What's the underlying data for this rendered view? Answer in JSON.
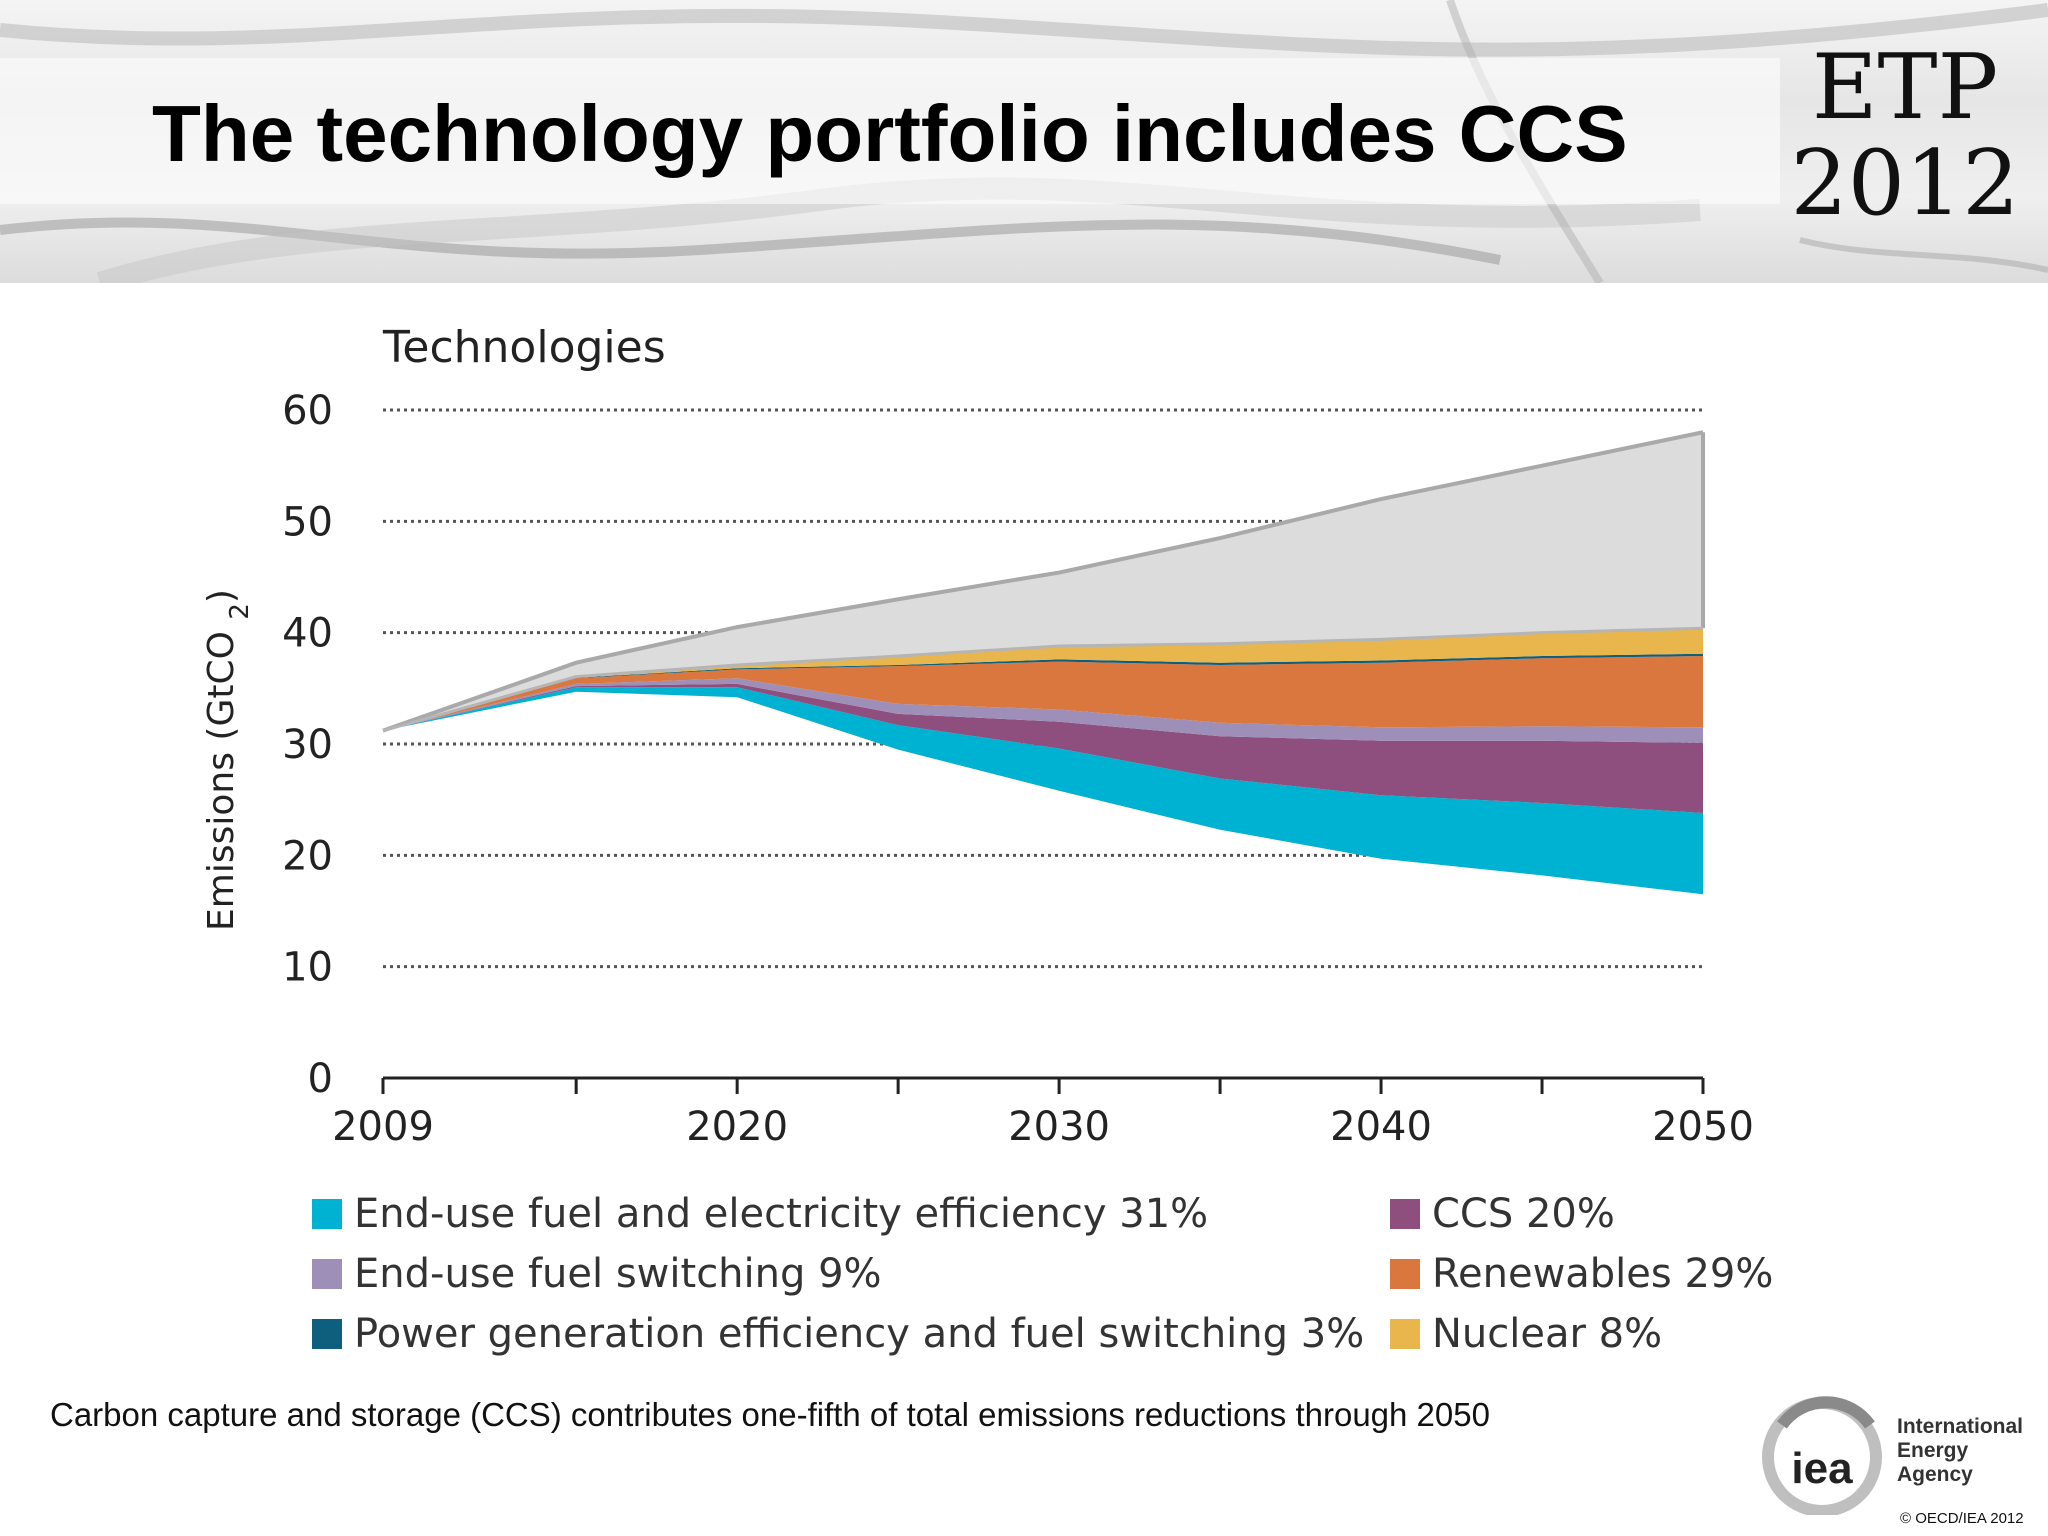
{
  "header": {
    "title": "The technology portfolio includes CCS",
    "badge_line1": "ETP",
    "badge_line2": "2012"
  },
  "chart_data": {
    "type": "area",
    "title": "Technologies",
    "ylabel": "Emissions (GtCO2)",
    "xlabel": "",
    "xlim": [
      2009,
      2050
    ],
    "ylim": [
      0,
      60
    ],
    "y_ticks": [
      0,
      10,
      20,
      30,
      40,
      50,
      60
    ],
    "x_tick_labels": [
      2009,
      2020,
      2030,
      2040,
      2050
    ],
    "x_minor_ticks": [
      2009,
      2015,
      2020,
      2025,
      2030,
      2035,
      2040,
      2045,
      2050
    ],
    "grid": "dotted horizontal",
    "legend_position": "bottom",
    "x": [
      2009,
      2015,
      2020,
      2025,
      2030,
      2035,
      2040,
      2045,
      2050
    ],
    "baseline_total": [
      31.2,
      37.3,
      40.5,
      43,
      45.4,
      48.5,
      52,
      55,
      58
    ],
    "bottom_line": [
      31.2,
      34.7,
      34.2,
      29.5,
      25.8,
      22.3,
      19.7,
      18.2,
      16.5
    ],
    "series": [
      {
        "name": "End-use fuel and electricity efficiency 31%",
        "color": "#00b2d1",
        "values": [
          0,
          0.4,
          0.9,
          2.2,
          3.8,
          4.6,
          5.7,
          6.5,
          7.3
        ]
      },
      {
        "name": "CCS 20%",
        "color": "#8e4e7e",
        "values": [
          0,
          0.1,
          0.3,
          1.0,
          2.4,
          3.8,
          4.9,
          5.6,
          6.3
        ]
      },
      {
        "name": "End-use fuel switching 9%",
        "color": "#9e8fb8",
        "values": [
          0,
          0.2,
          0.5,
          0.9,
          1.1,
          1.2,
          1.2,
          1.3,
          1.4
        ]
      },
      {
        "name": "Renewables 29%",
        "color": "#d9773e",
        "values": [
          0,
          0.5,
          0.8,
          3.4,
          4.3,
          5.2,
          5.8,
          6.1,
          6.4
        ]
      },
      {
        "name": "Power generation efficiency and fuel switching 3%",
        "color": "#0e5e7e",
        "values": [
          0,
          0.05,
          0.1,
          0.1,
          0.2,
          0.2,
          0.2,
          0.2,
          0.2
        ]
      },
      {
        "name": "Nuclear 8%",
        "color": "#e8b64c",
        "values": [
          0,
          0.1,
          0.3,
          0.8,
          1.2,
          1.7,
          1.9,
          2.1,
          2.3
        ]
      }
    ],
    "remaining_color": "#dcdcdd",
    "remaining_edge": "#a9a9a9"
  },
  "legend": {
    "left": [
      {
        "label": "End-use fuel and electricity efficiency 31%",
        "color": "#00b2d1"
      },
      {
        "label": "End-use fuel switching 9%",
        "color": "#9e8fb8"
      },
      {
        "label": "Power generation efficiency and fuel  switching 3%",
        "color": "#0e5e7e"
      }
    ],
    "right": [
      {
        "label": "CCS 20%",
        "color": "#8e4e7e"
      },
      {
        "label": "Renewables 29%",
        "color": "#d9773e"
      },
      {
        "label": "Nuclear 8%",
        "color": "#e8b64c"
      }
    ]
  },
  "caption": "Carbon capture and storage (CCS) contributes one-fifth of total emissions reductions through 2050",
  "footer": {
    "logo_text": "iea",
    "org_line1": "International",
    "org_line2": "Energy Agency",
    "copyright": "© OECD/IEA 2012"
  }
}
